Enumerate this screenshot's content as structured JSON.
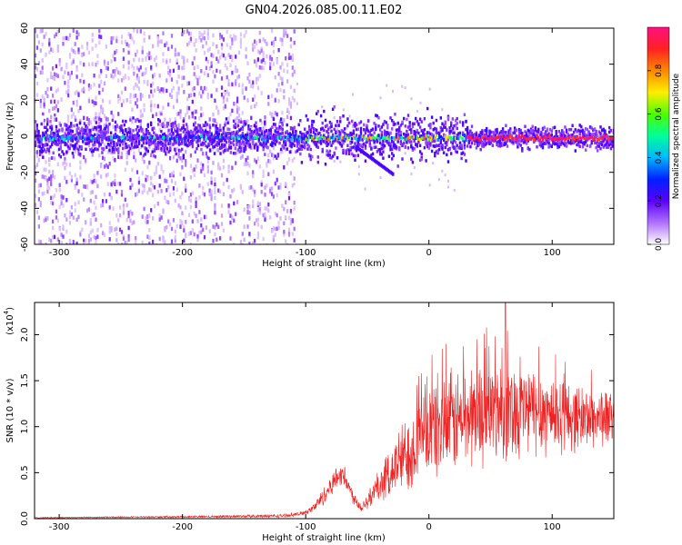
{
  "title": "GN04.2026.085.00.11.E02",
  "colors": {
    "snr_line": "#ee2222",
    "colormap": [
      "#ffffff",
      "#b070ff",
      "#5b00ff",
      "#0020ff",
      "#00b8ff",
      "#00ff9a",
      "#4cff00",
      "#ffee00",
      "#ff8800",
      "#ff2222",
      "#ff0f80"
    ]
  },
  "chart_data": [
    {
      "id": "spectrogram",
      "type": "heatmap",
      "xlabel": "Height of straight line (km)",
      "ylabel": "Frequency (Hz)",
      "xlim": [
        -320,
        150
      ],
      "ylim": [
        -60,
        60
      ],
      "x_ticks": [
        -300,
        -200,
        -100,
        0,
        100
      ],
      "x_tick_labels": [
        "-300",
        "-200",
        "-100",
        "0",
        "100"
      ],
      "y_ticks": [
        -60,
        -40,
        -20,
        0,
        20,
        40,
        60
      ],
      "y_tick_labels": [
        "-60",
        "-40",
        "-20",
        "0",
        "20",
        "40",
        "60"
      ],
      "colorbar": {
        "label": "Normalized spectral amplitude",
        "range": [
          0,
          1
        ],
        "ticks": [
          0.0,
          0.2,
          0.4,
          0.6,
          0.8
        ],
        "tick_labels": [
          "0.0",
          "0.2",
          "0.4",
          "0.6",
          "0.8"
        ]
      },
      "bands": [
        {
          "x_start": -320,
          "x_end": -110,
          "freq_center": 0,
          "freq_halfwidth": 3,
          "amplitude": 0.3,
          "note": "broadband scatter across full frequency range"
        },
        {
          "x_start": -110,
          "x_end": 30,
          "freq_center": 0,
          "freq_halfwidth": 4,
          "amplitude": 0.55
        },
        {
          "x_start": 30,
          "x_end": 150,
          "freq_center": 0,
          "freq_halfwidth": 2,
          "amplitude": 0.95
        }
      ],
      "feature": {
        "x_start": -60,
        "x_end": -30,
        "freq_start": -5,
        "freq_end": -20
      }
    },
    {
      "id": "snr",
      "type": "line",
      "xlabel": "Height of straight line (km)",
      "ylabel": "SNR (10 * v/v)",
      "scale_label": "(x10",
      "scale_exponent": "4",
      "scale_close": ")",
      "xlim": [
        -320,
        150
      ],
      "ylim": [
        0,
        2.35
      ],
      "x_ticks": [
        -300,
        -200,
        -100,
        0,
        100
      ],
      "x_tick_labels": [
        "-300",
        "-200",
        "-100",
        "0",
        "100"
      ],
      "y_ticks": [
        0.0,
        0.5,
        1.0,
        1.5,
        2.0
      ],
      "y_tick_labels": [
        "0.0",
        "0.5",
        "1.0",
        "1.5",
        "2.0"
      ],
      "envelope": {
        "x": [
          -320,
          -200,
          -120,
          -105,
          -95,
          -85,
          -75,
          -70,
          -62,
          -55,
          -45,
          -35,
          -25,
          -15,
          -5,
          5,
          20,
          40,
          60,
          80,
          100,
          120,
          150
        ],
        "mean": [
          0.01,
          0.02,
          0.03,
          0.05,
          0.1,
          0.25,
          0.45,
          0.5,
          0.25,
          0.12,
          0.28,
          0.45,
          0.6,
          0.75,
          0.9,
          1.0,
          1.05,
          1.15,
          1.2,
          1.18,
          1.15,
          1.1,
          1.1
        ],
        "amp": [
          0.005,
          0.01,
          0.02,
          0.02,
          0.04,
          0.1,
          0.12,
          0.12,
          0.08,
          0.05,
          0.15,
          0.22,
          0.35,
          0.45,
          0.5,
          0.55,
          0.55,
          0.55,
          0.55,
          0.5,
          0.45,
          0.35,
          0.3
        ]
      },
      "peak": {
        "x": 62,
        "y": 2.35
      }
    }
  ]
}
